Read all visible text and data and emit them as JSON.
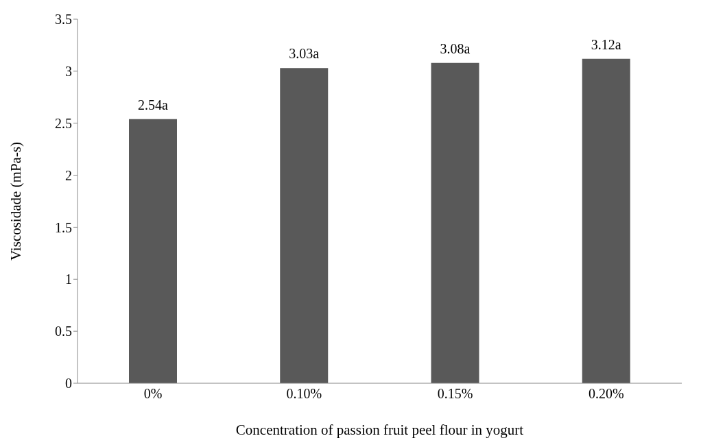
{
  "chart_data": {
    "type": "bar",
    "xlabel": "Concentration of passion fruit peel flour in yogurt",
    "ylabel": "Viscosidade (mPa-s)",
    "categories": [
      "0%",
      "0.10%",
      "0.15%",
      "0.20%"
    ],
    "values": [
      2.54,
      3.03,
      3.08,
      3.12
    ],
    "value_labels": [
      "2.54a",
      "3.03a",
      "3.08a",
      "3.12a"
    ],
    "color": "#595959",
    "ylim": [
      0,
      3.5
    ],
    "yticks": [
      0,
      0.5,
      1,
      1.5,
      2,
      2.5,
      3,
      3.5
    ],
    "grid": false
  }
}
